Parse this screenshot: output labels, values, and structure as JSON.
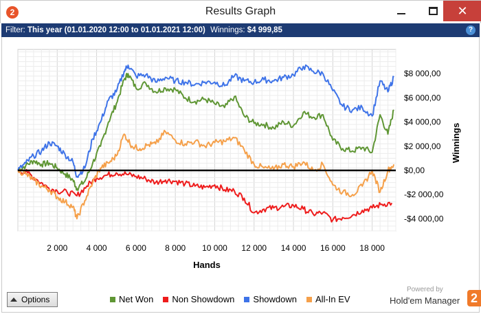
{
  "window": {
    "title": "Results Graph",
    "app_icon": "2",
    "close_glyph": "✕"
  },
  "filter": {
    "label": "Filter:",
    "value": "This year (01.01.2020 12:00 to 01.01.2021 12:00)",
    "winnings_label": "Winnings:",
    "winnings_value": "$4 999,85",
    "help_glyph": "?"
  },
  "options": {
    "label": "Options"
  },
  "branding": {
    "powered_by": "Powered by",
    "name": "Hold'em Manager",
    "logo_text": "2"
  },
  "colors": {
    "net_won": "#5f9634",
    "non_showdown": "#ee1c1c",
    "showdown": "#3e73e8",
    "all_in_ev": "#f5a04a",
    "zero_line": "#000000",
    "titlebar_filter_bg": "#1d3b73",
    "close_button": "#c7403a"
  },
  "chart_data": {
    "type": "line",
    "xlabel": "Hands",
    "ylabel": "Winnings",
    "xlim": [
      0,
      19200
    ],
    "ylim": [
      -5000,
      10000
    ],
    "xticks": [
      2000,
      4000,
      6000,
      8000,
      10000,
      12000,
      14000,
      16000,
      18000
    ],
    "xtick_labels": [
      "2 000",
      "4 000",
      "6 000",
      "8 000",
      "10 000",
      "12 000",
      "14 000",
      "16 000",
      "18 000"
    ],
    "yticks": [
      8000,
      6000,
      4000,
      2000,
      0,
      -2000,
      -4000
    ],
    "ytick_labels": [
      "$8 000,00",
      "$6 000,00",
      "$4 000,00",
      "$2 000,00",
      "$0,00",
      "-$2 000,00",
      "-$4 000,00"
    ],
    "grid": true,
    "legend_position": "bottom",
    "series": [
      {
        "name": "Net Won",
        "color_key": "net_won",
        "x": [
          0,
          400,
          800,
          1200,
          1600,
          2000,
          2400,
          2800,
          3000,
          3400,
          3800,
          4200,
          4600,
          5000,
          5400,
          5600,
          6000,
          6500,
          7000,
          7500,
          8000,
          8500,
          9000,
          9500,
          10000,
          10500,
          11000,
          11500,
          12000,
          12500,
          13000,
          13500,
          14000,
          14500,
          15000,
          15500,
          16000,
          16500,
          17000,
          17500,
          18000,
          18400,
          18800,
          19100
        ],
        "y": [
          0,
          400,
          800,
          500,
          600,
          200,
          -300,
          -800,
          -1500,
          -900,
          600,
          2000,
          4000,
          5500,
          7500,
          8000,
          6800,
          7200,
          6500,
          6800,
          6700,
          6000,
          5700,
          5900,
          5500,
          5200,
          6100,
          4500,
          3900,
          3800,
          3500,
          4000,
          3700,
          4800,
          4400,
          4600,
          2500,
          1800,
          1600,
          1900,
          1500,
          4600,
          3000,
          5000
        ]
      },
      {
        "name": "Non Showdown",
        "color_key": "non_showdown",
        "x": [
          0,
          500,
          1000,
          1500,
          2000,
          2500,
          3000,
          3500,
          4000,
          4500,
          5000,
          5500,
          6000,
          6500,
          7000,
          7500,
          8000,
          8500,
          9000,
          9500,
          10000,
          10500,
          11000,
          11500,
          12000,
          12500,
          13000,
          13500,
          14000,
          14500,
          15000,
          15500,
          16000,
          16500,
          17000,
          17500,
          18000,
          18500,
          19000
        ],
        "y": [
          0,
          -200,
          -800,
          -1400,
          -1700,
          -1800,
          -2100,
          -1300,
          -600,
          -400,
          -200,
          -300,
          -500,
          -700,
          -1000,
          -800,
          -900,
          -1100,
          -1300,
          -1400,
          -1200,
          -1600,
          -1700,
          -2300,
          -3500,
          -3200,
          -3100,
          -3000,
          -2900,
          -3200,
          -3600,
          -3500,
          -4100,
          -3900,
          -3700,
          -3300,
          -3100,
          -2800,
          -2700
        ]
      },
      {
        "name": "Showdown",
        "color_key": "showdown",
        "x": [
          0,
          400,
          800,
          1200,
          1600,
          2000,
          2400,
          2800,
          3000,
          3400,
          3800,
          4200,
          4600,
          5000,
          5400,
          5600,
          6000,
          6500,
          7000,
          7500,
          8000,
          8500,
          9000,
          9500,
          10000,
          10500,
          11000,
          11500,
          12000,
          12500,
          13000,
          13500,
          14000,
          14500,
          15000,
          15500,
          16000,
          16500,
          17000,
          17500,
          18000,
          18400,
          18800,
          19100
        ],
        "y": [
          0,
          600,
          1200,
          1600,
          2300,
          2000,
          1300,
          700,
          -500,
          200,
          2600,
          4000,
          5800,
          6500,
          8200,
          8700,
          7800,
          7900,
          7300,
          7700,
          7400,
          7300,
          7100,
          7300,
          7300,
          7000,
          7800,
          7400,
          7300,
          7500,
          7400,
          7700,
          7900,
          8600,
          8200,
          8000,
          6600,
          5300,
          5000,
          5200,
          4500,
          7400,
          6500,
          7700
        ]
      },
      {
        "name": "All-In EV",
        "color_key": "all_in_ev",
        "x": [
          0,
          400,
          800,
          1200,
          1600,
          2000,
          2400,
          2800,
          3000,
          3400,
          3800,
          4200,
          4600,
          5000,
          5400,
          5800,
          6200,
          6600,
          7000,
          7500,
          8000,
          8500,
          9000,
          9500,
          10000,
          10500,
          11000,
          11500,
          12000,
          12500,
          13000,
          13500,
          14000,
          14500,
          15000,
          15500,
          16000,
          16500,
          17000,
          17500,
          18000,
          18400,
          18800,
          19100
        ],
        "y": [
          0,
          -300,
          -800,
          -1300,
          -1600,
          -2200,
          -2600,
          -3000,
          -4000,
          -2500,
          -1000,
          200,
          600,
          1200,
          3000,
          2000,
          1800,
          2100,
          2200,
          3200,
          2500,
          2200,
          2400,
          2000,
          2300,
          2400,
          2700,
          1700,
          500,
          200,
          100,
          500,
          300,
          700,
          0,
          500,
          -1200,
          -1800,
          -2000,
          -1300,
          0,
          -1800,
          0,
          500
        ]
      }
    ]
  }
}
